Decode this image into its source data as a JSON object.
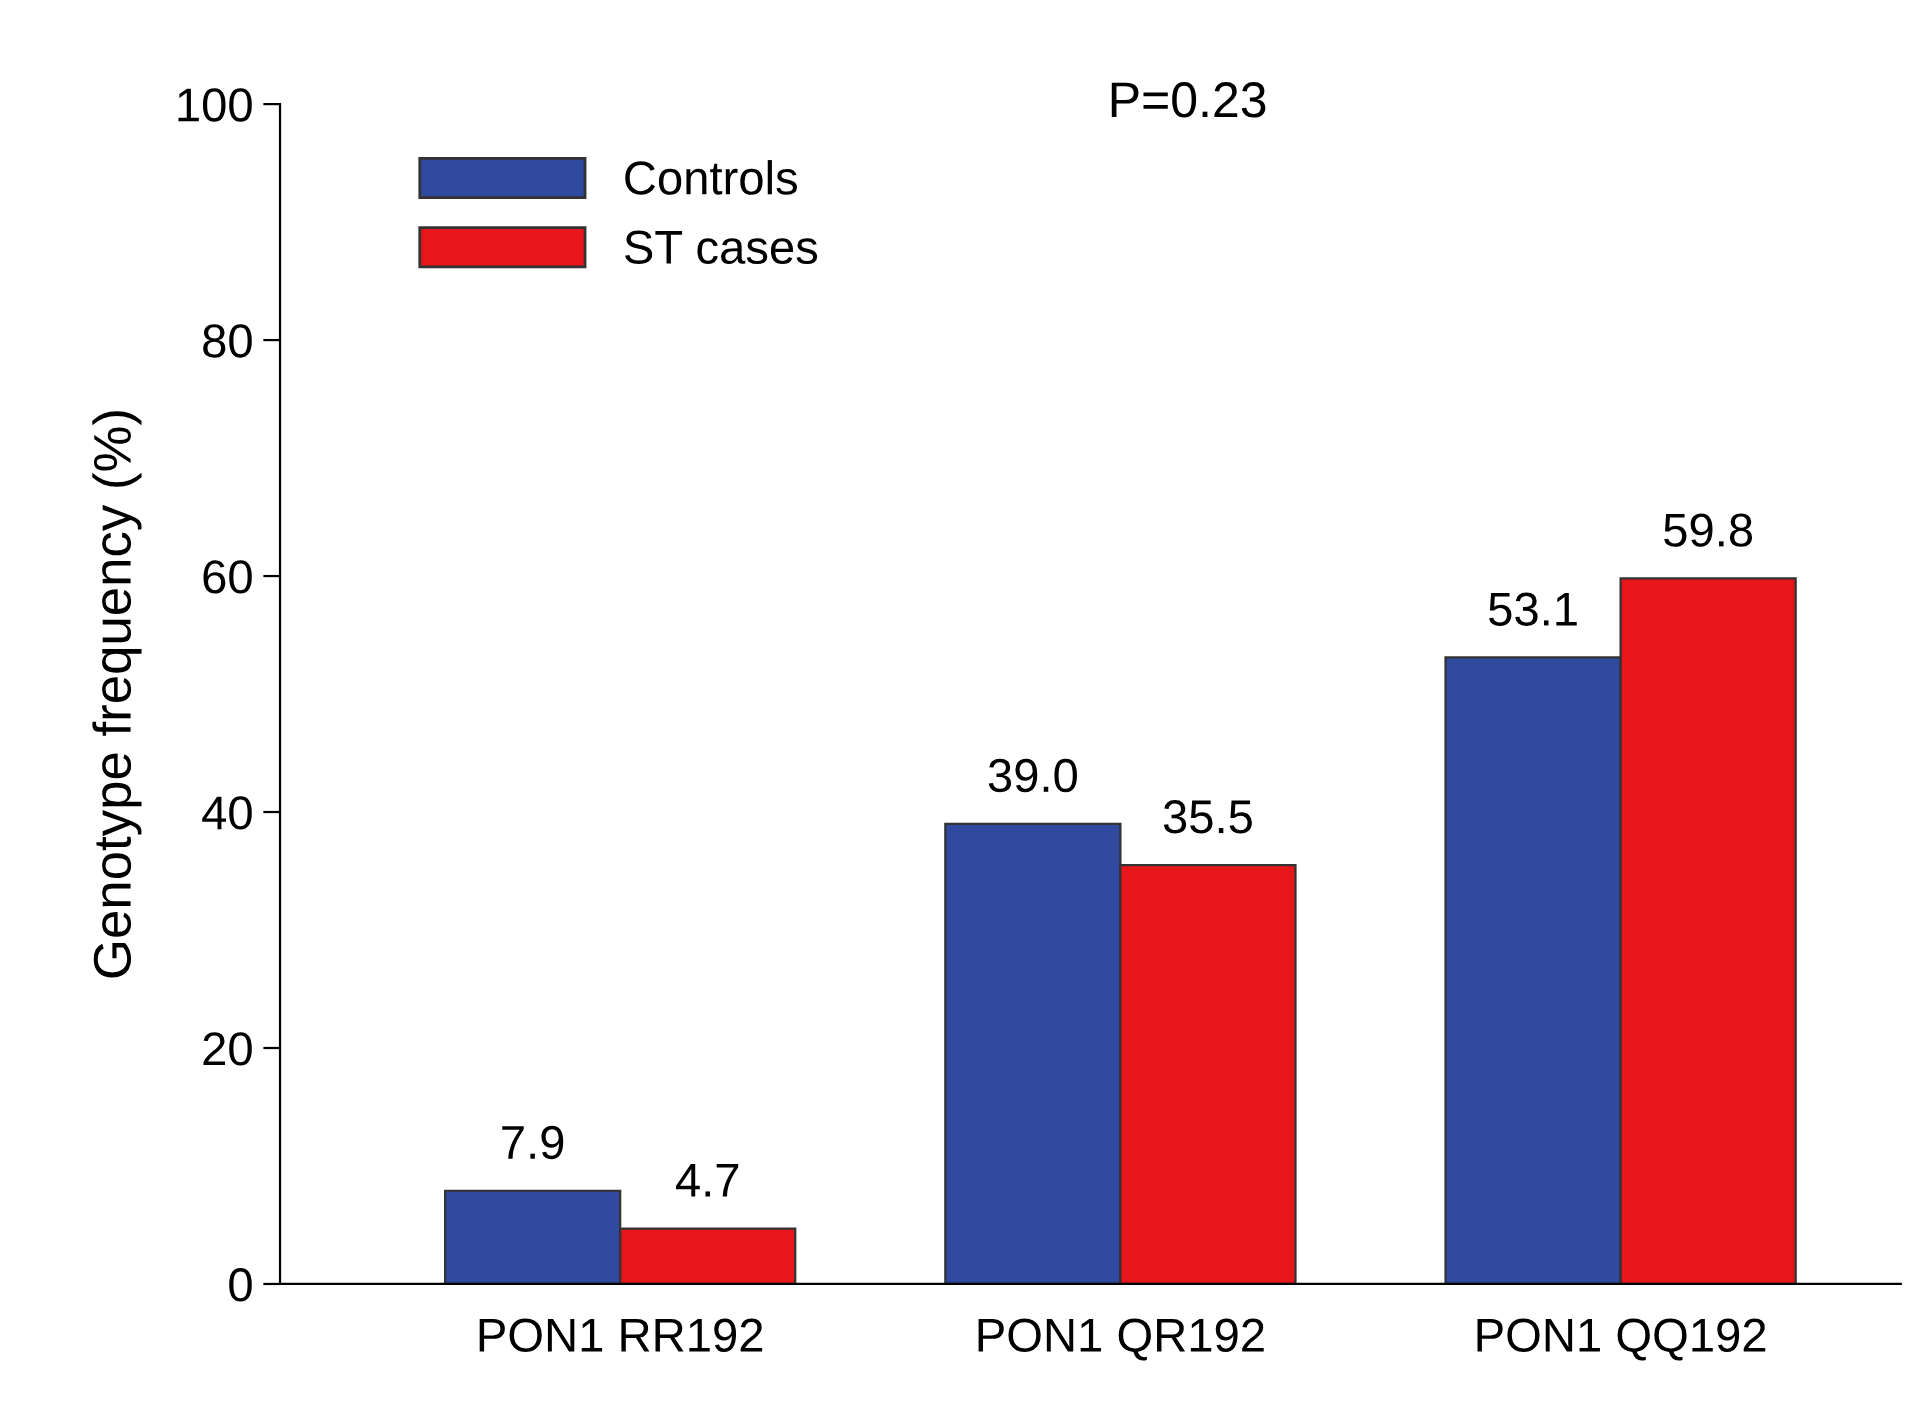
{
  "chart_data": {
    "type": "bar",
    "ylabel": "Genotype frequency (%)",
    "categories": [
      "PON1 RR192",
      "PON1 QR192",
      "PON1 QQ192"
    ],
    "series": [
      {
        "name": "Controls",
        "color": "#2f4a9e",
        "values": [
          7.9,
          39.0,
          53.1
        ],
        "value_labels": [
          "7.9",
          "39.0",
          "53.1"
        ]
      },
      {
        "name": "ST cases",
        "color": "#e8161b",
        "values": [
          4.7,
          35.5,
          59.8
        ],
        "value_labels": [
          "4.7",
          "35.5",
          "59.8"
        ]
      }
    ],
    "ylim": [
      0,
      100
    ],
    "yticks": [
      0,
      20,
      40,
      60,
      80,
      100
    ],
    "grid": false,
    "legend": "top left",
    "annotations": [
      "P=0.23"
    ]
  }
}
